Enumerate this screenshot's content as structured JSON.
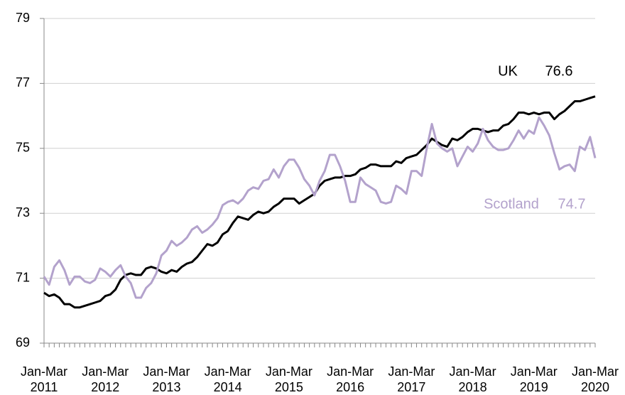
{
  "chart_data": {
    "type": "line",
    "categories": [
      "Jan-Mar 2011",
      null,
      null,
      null,
      null,
      null,
      null,
      null,
      null,
      null,
      null,
      null,
      "Jan-Mar 2012",
      null,
      null,
      null,
      null,
      null,
      null,
      null,
      null,
      null,
      null,
      null,
      "Jan-Mar 2013",
      null,
      null,
      null,
      null,
      null,
      null,
      null,
      null,
      null,
      null,
      null,
      "Jan-Mar 2014",
      null,
      null,
      null,
      null,
      null,
      null,
      null,
      null,
      null,
      null,
      null,
      "Jan-Mar 2015",
      null,
      null,
      null,
      null,
      null,
      null,
      null,
      null,
      null,
      null,
      null,
      "Jan-Mar 2016",
      null,
      null,
      null,
      null,
      null,
      null,
      null,
      null,
      null,
      null,
      null,
      "Jan-Mar 2017",
      null,
      null,
      null,
      null,
      null,
      null,
      null,
      null,
      null,
      null,
      null,
      "Jan-Mar 2018",
      null,
      null,
      null,
      null,
      null,
      null,
      null,
      null,
      null,
      null,
      null,
      "Jan-Mar 2019",
      null,
      null,
      null,
      null,
      null,
      null,
      null,
      null,
      null,
      null,
      null,
      "Jan-Mar 2020"
    ],
    "series": [
      {
        "name": "UK",
        "color": "#000000",
        "values": [
          70.55,
          70.45,
          70.5,
          70.4,
          70.2,
          70.2,
          70.1,
          70.1,
          70.15,
          70.2,
          70.25,
          70.3,
          70.45,
          70.5,
          70.65,
          70.95,
          71.1,
          71.15,
          71.1,
          71.1,
          71.3,
          71.35,
          71.3,
          71.2,
          71.15,
          71.25,
          71.2,
          71.35,
          71.45,
          71.5,
          71.65,
          71.85,
          72.05,
          72.0,
          72.1,
          72.35,
          72.45,
          72.7,
          72.9,
          72.85,
          72.8,
          72.95,
          73.05,
          73.0,
          73.05,
          73.2,
          73.3,
          73.45,
          73.45,
          73.45,
          73.3,
          73.4,
          73.5,
          73.6,
          73.85,
          74.0,
          74.05,
          74.1,
          74.1,
          74.15,
          74.15,
          74.2,
          74.35,
          74.4,
          74.5,
          74.5,
          74.45,
          74.45,
          74.45,
          74.6,
          74.55,
          74.7,
          74.75,
          74.8,
          74.95,
          75.1,
          75.3,
          75.2,
          75.1,
          75.05,
          75.3,
          75.25,
          75.35,
          75.5,
          75.6,
          75.6,
          75.55,
          75.5,
          75.55,
          75.55,
          75.7,
          75.75,
          75.9,
          76.1,
          76.1,
          76.05,
          76.1,
          76.05,
          76.1,
          76.1,
          75.9,
          76.05,
          76.15,
          76.3,
          76.45,
          76.45,
          76.5,
          76.55,
          76.6
        ]
      },
      {
        "name": "Scotland",
        "color": "#b3a2cc",
        "values": [
          71.05,
          70.8,
          71.35,
          71.55,
          71.25,
          70.8,
          71.05,
          71.05,
          70.9,
          70.85,
          70.95,
          71.3,
          71.2,
          71.05,
          71.25,
          71.4,
          71.05,
          70.85,
          70.4,
          70.4,
          70.7,
          70.85,
          71.15,
          71.7,
          71.85,
          72.15,
          72.0,
          72.1,
          72.25,
          72.5,
          72.6,
          72.4,
          72.5,
          72.65,
          72.85,
          73.25,
          73.35,
          73.4,
          73.3,
          73.45,
          73.7,
          73.8,
          73.75,
          74.0,
          74.05,
          74.35,
          74.1,
          74.45,
          74.65,
          74.65,
          74.4,
          74.05,
          73.85,
          73.55,
          74.0,
          74.3,
          74.8,
          74.8,
          74.45,
          74.0,
          73.35,
          73.35,
          74.1,
          73.9,
          73.8,
          73.7,
          73.35,
          73.3,
          73.35,
          73.85,
          73.75,
          73.6,
          74.3,
          74.3,
          74.15,
          75.0,
          75.75,
          75.15,
          75.0,
          74.9,
          75.0,
          74.45,
          74.75,
          75.05,
          74.9,
          75.15,
          75.6,
          75.25,
          75.05,
          74.95,
          74.95,
          75.0,
          75.25,
          75.55,
          75.3,
          75.55,
          75.45,
          75.95,
          75.7,
          75.4,
          74.85,
          74.35,
          74.45,
          74.5,
          74.3,
          75.05,
          74.95,
          75.35,
          74.7
        ]
      }
    ],
    "ylim": [
      69,
      79
    ],
    "yticks": [
      69,
      71,
      73,
      75,
      77,
      79
    ],
    "grid": true
  }
}
